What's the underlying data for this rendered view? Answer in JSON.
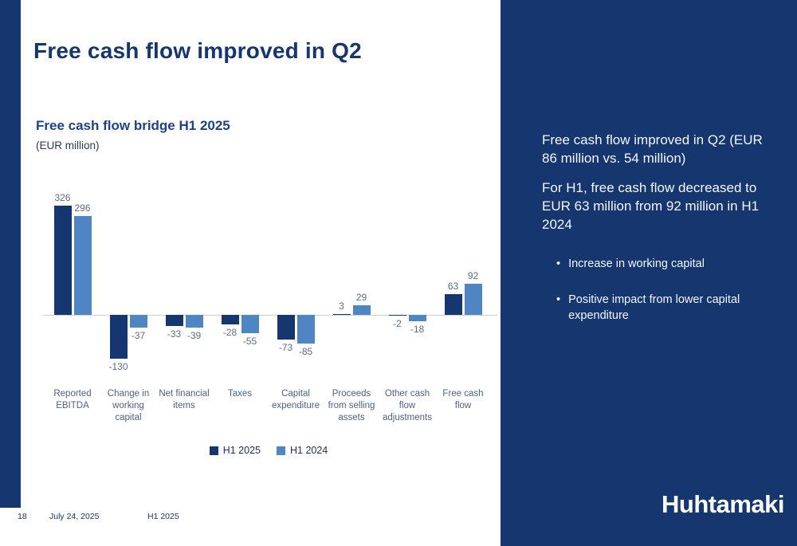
{
  "slide": {
    "title": "Free cash flow improved in Q2",
    "footer": {
      "page": "18",
      "date": "July 24, 2025",
      "period": "H1 2025"
    }
  },
  "chart": {
    "heading": "Free cash flow bridge H1 2025",
    "unit": "(EUR million)"
  },
  "chart_data": {
    "type": "bar",
    "title": "Free cash flow bridge H1 2025",
    "unit": "EUR million",
    "categories": [
      "Reported EBITDA",
      "Change in working capital",
      "Net financial items",
      "Taxes",
      "Capital expenditure",
      "Proceeds from selling assets",
      "Other cash flow adjustments",
      "Free cash flow"
    ],
    "series": [
      {
        "name": "H1 2025",
        "color": "#16366f",
        "values": [
          326,
          -130,
          -33,
          -28,
          -73,
          3,
          -2,
          63
        ]
      },
      {
        "name": "H1 2024",
        "color": "#4e86c4",
        "values": [
          296,
          -37,
          -39,
          -55,
          -85,
          29,
          -18,
          92
        ]
      }
    ],
    "baseline": 0,
    "grid": false,
    "legend_position": "bottom"
  },
  "panel": {
    "paragraphs": [
      "Free cash flow improved in Q2 (EUR 86 million vs. 54 million)",
      "For H1, free cash flow decreased to EUR 63 million from 92 million in H1 2024"
    ],
    "bullet_marker": "•",
    "bullets": [
      "Increase in working capital",
      "Positive impact from lower capital expenditure"
    ],
    "logo": "Huhtamaki"
  },
  "colors": {
    "navy": "#16366f",
    "light_blue": "#4e86c4",
    "heading_blue": "#1d4289"
  }
}
